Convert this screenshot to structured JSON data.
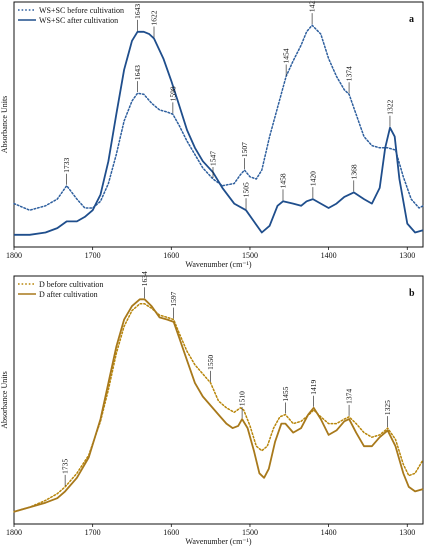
{
  "chart_data": [
    {
      "type": "line",
      "panel_label": "a",
      "xlabel": "Wavenumber (cm⁻¹)",
      "ylabel": "Absorbance Units",
      "xlim": [
        1800,
        1280
      ],
      "x_reversed": true,
      "x_ticks": [
        1800,
        1700,
        1600,
        1500,
        1400,
        1300
      ],
      "y_ticks_shown": false,
      "legend_placement": "top-left",
      "series": [
        {
          "name": "WS+SC before cultivation",
          "style": "dotted",
          "color": "#2e5f9e",
          "points": [
            [
              1800,
              0.15
            ],
            [
              1780,
              0.12
            ],
            [
              1760,
              0.14
            ],
            [
              1745,
              0.17
            ],
            [
              1733,
              0.23
            ],
            [
              1720,
              0.17
            ],
            [
              1710,
              0.13
            ],
            [
              1700,
              0.13
            ],
            [
              1690,
              0.16
            ],
            [
              1680,
              0.24
            ],
            [
              1670,
              0.37
            ],
            [
              1660,
              0.52
            ],
            [
              1650,
              0.61
            ],
            [
              1643,
              0.645
            ],
            [
              1635,
              0.64
            ],
            [
              1625,
              0.6
            ],
            [
              1615,
              0.57
            ],
            [
              1605,
              0.56
            ],
            [
              1598,
              0.55
            ],
            [
              1590,
              0.5
            ],
            [
              1580,
              0.43
            ],
            [
              1570,
              0.37
            ],
            [
              1560,
              0.31
            ],
            [
              1547,
              0.26
            ],
            [
              1535,
              0.23
            ],
            [
              1520,
              0.24
            ],
            [
              1512,
              0.28
            ],
            [
              1507,
              0.3
            ],
            [
              1500,
              0.27
            ],
            [
              1492,
              0.26
            ],
            [
              1485,
              0.3
            ],
            [
              1475,
              0.45
            ],
            [
              1465,
              0.58
            ],
            [
              1454,
              0.72
            ],
            [
              1445,
              0.79
            ],
            [
              1435,
              0.86
            ],
            [
              1428,
              0.92
            ],
            [
              1421,
              0.95
            ],
            [
              1410,
              0.91
            ],
            [
              1400,
              0.8
            ],
            [
              1390,
              0.72
            ],
            [
              1380,
              0.66
            ],
            [
              1374,
              0.64
            ],
            [
              1365,
              0.55
            ],
            [
              1355,
              0.45
            ],
            [
              1345,
              0.41
            ],
            [
              1335,
              0.4
            ],
            [
              1325,
              0.4
            ],
            [
              1315,
              0.39
            ],
            [
              1305,
              0.27
            ],
            [
              1295,
              0.17
            ],
            [
              1285,
              0.13
            ],
            [
              1280,
              0.14
            ]
          ]
        },
        {
          "name": "WS+SC after cultivation",
          "style": "solid",
          "color": "#1f4e8c",
          "points": [
            [
              1800,
              0.01
            ],
            [
              1780,
              0.01
            ],
            [
              1760,
              0.02
            ],
            [
              1745,
              0.04
            ],
            [
              1733,
              0.07
            ],
            [
              1720,
              0.07
            ],
            [
              1710,
              0.09
            ],
            [
              1700,
              0.12
            ],
            [
              1690,
              0.19
            ],
            [
              1680,
              0.34
            ],
            [
              1670,
              0.55
            ],
            [
              1660,
              0.75
            ],
            [
              1650,
              0.88
            ],
            [
              1643,
              0.92
            ],
            [
              1635,
              0.92
            ],
            [
              1628,
              0.91
            ],
            [
              1622,
              0.89
            ],
            [
              1610,
              0.8
            ],
            [
              1600,
              0.7
            ],
            [
              1590,
              0.59
            ],
            [
              1580,
              0.48
            ],
            [
              1570,
              0.4
            ],
            [
              1560,
              0.34
            ],
            [
              1547,
              0.29
            ],
            [
              1535,
              0.22
            ],
            [
              1520,
              0.15
            ],
            [
              1505,
              0.12
            ],
            [
              1495,
              0.07
            ],
            [
              1485,
              0.02
            ],
            [
              1475,
              0.05
            ],
            [
              1465,
              0.14
            ],
            [
              1458,
              0.16
            ],
            [
              1445,
              0.15
            ],
            [
              1435,
              0.14
            ],
            [
              1428,
              0.16
            ],
            [
              1420,
              0.17
            ],
            [
              1410,
              0.15
            ],
            [
              1400,
              0.13
            ],
            [
              1390,
              0.15
            ],
            [
              1380,
              0.18
            ],
            [
              1368,
              0.2
            ],
            [
              1355,
              0.17
            ],
            [
              1345,
              0.15
            ],
            [
              1335,
              0.22
            ],
            [
              1328,
              0.4
            ],
            [
              1322,
              0.49
            ],
            [
              1316,
              0.45
            ],
            [
              1310,
              0.26
            ],
            [
              1300,
              0.06
            ],
            [
              1290,
              0.02
            ],
            [
              1280,
              0.03
            ]
          ]
        }
      ],
      "peak_labels": [
        {
          "text": "1733",
          "x": 1733,
          "y": 0.23
        },
        {
          "text": "1643",
          "x": 1643,
          "y": 0.645
        },
        {
          "text": "1598",
          "x": 1598,
          "y": 0.55
        },
        {
          "text": "1547",
          "x": 1547,
          "y": 0.26
        },
        {
          "text": "1507",
          "x": 1507,
          "y": 0.3
        },
        {
          "text": "1454",
          "x": 1454,
          "y": 0.72
        },
        {
          "text": "1421",
          "x": 1421,
          "y": 0.95
        },
        {
          "text": "1374",
          "x": 1374,
          "y": 0.64
        },
        {
          "text": "1643",
          "x": 1643,
          "y": 0.92
        },
        {
          "text": "1622",
          "x": 1622,
          "y": 0.89
        },
        {
          "text": "1505",
          "x": 1505,
          "y": 0.12
        },
        {
          "text": "1458",
          "x": 1458,
          "y": 0.16
        },
        {
          "text": "1420",
          "x": 1420,
          "y": 0.17
        },
        {
          "text": "1368",
          "x": 1368,
          "y": 0.2
        },
        {
          "text": "1322",
          "x": 1322,
          "y": 0.49
        }
      ]
    },
    {
      "type": "line",
      "panel_label": "b",
      "xlabel": "Wavenumber (cm⁻¹)",
      "ylabel": "Absorbance Units",
      "xlim": [
        1800,
        1280
      ],
      "x_reversed": true,
      "x_ticks": [
        1800,
        1700,
        1600,
        1500,
        1400,
        1300
      ],
      "y_ticks_shown": false,
      "legend_placement": "top-left",
      "series": [
        {
          "name": "D before cultivation",
          "style": "dotted",
          "color": "#b8860b",
          "points": [
            [
              1800,
              0.01
            ],
            [
              1780,
              0.03
            ],
            [
              1760,
              0.06
            ],
            [
              1745,
              0.09
            ],
            [
              1735,
              0.12
            ],
            [
              1720,
              0.18
            ],
            [
              1705,
              0.26
            ],
            [
              1690,
              0.41
            ],
            [
              1680,
              0.55
            ],
            [
              1670,
              0.71
            ],
            [
              1660,
              0.83
            ],
            [
              1650,
              0.9
            ],
            [
              1640,
              0.93
            ],
            [
              1634,
              0.93
            ],
            [
              1625,
              0.91
            ],
            [
              1615,
              0.88
            ],
            [
              1605,
              0.87
            ],
            [
              1597,
              0.86
            ],
            [
              1590,
              0.8
            ],
            [
              1580,
              0.72
            ],
            [
              1570,
              0.66
            ],
            [
              1560,
              0.62
            ],
            [
              1550,
              0.58
            ],
            [
              1540,
              0.5
            ],
            [
              1530,
              0.47
            ],
            [
              1520,
              0.45
            ],
            [
              1512,
              0.47
            ],
            [
              1508,
              0.46
            ],
            [
              1500,
              0.39
            ],
            [
              1492,
              0.3
            ],
            [
              1485,
              0.28
            ],
            [
              1478,
              0.3
            ],
            [
              1470,
              0.38
            ],
            [
              1462,
              0.43
            ],
            [
              1455,
              0.44
            ],
            [
              1445,
              0.4
            ],
            [
              1435,
              0.41
            ],
            [
              1425,
              0.44
            ],
            [
              1419,
              0.46
            ],
            [
              1410,
              0.43
            ],
            [
              1400,
              0.4
            ],
            [
              1390,
              0.4
            ],
            [
              1380,
              0.42
            ],
            [
              1374,
              0.43
            ],
            [
              1365,
              0.4
            ],
            [
              1355,
              0.36
            ],
            [
              1345,
              0.34
            ],
            [
              1335,
              0.35
            ],
            [
              1328,
              0.37
            ],
            [
              1325,
              0.38
            ],
            [
              1315,
              0.33
            ],
            [
              1305,
              0.22
            ],
            [
              1298,
              0.17
            ],
            [
              1290,
              0.18
            ],
            [
              1280,
              0.24
            ]
          ]
        },
        {
          "name": "D after cultivation",
          "style": "solid",
          "color": "#a8791b",
          "points": [
            [
              1800,
              0.01
            ],
            [
              1780,
              0.03
            ],
            [
              1760,
              0.05
            ],
            [
              1745,
              0.07
            ],
            [
              1735,
              0.1
            ],
            [
              1720,
              0.16
            ],
            [
              1705,
              0.25
            ],
            [
              1690,
              0.42
            ],
            [
              1680,
              0.58
            ],
            [
              1670,
              0.74
            ],
            [
              1660,
              0.86
            ],
            [
              1650,
              0.92
            ],
            [
              1640,
              0.95
            ],
            [
              1634,
              0.95
            ],
            [
              1625,
              0.92
            ],
            [
              1615,
              0.87
            ],
            [
              1605,
              0.86
            ],
            [
              1597,
              0.85
            ],
            [
              1590,
              0.78
            ],
            [
              1580,
              0.68
            ],
            [
              1570,
              0.58
            ],
            [
              1560,
              0.52
            ],
            [
              1550,
              0.48
            ],
            [
              1540,
              0.44
            ],
            [
              1530,
              0.4
            ],
            [
              1522,
              0.38
            ],
            [
              1515,
              0.39
            ],
            [
              1510,
              0.42
            ],
            [
              1503,
              0.38
            ],
            [
              1495,
              0.28
            ],
            [
              1488,
              0.18
            ],
            [
              1482,
              0.16
            ],
            [
              1476,
              0.2
            ],
            [
              1468,
              0.32
            ],
            [
              1460,
              0.4
            ],
            [
              1455,
              0.4
            ],
            [
              1445,
              0.36
            ],
            [
              1435,
              0.38
            ],
            [
              1426,
              0.44
            ],
            [
              1419,
              0.47
            ],
            [
              1410,
              0.42
            ],
            [
              1400,
              0.35
            ],
            [
              1390,
              0.37
            ],
            [
              1380,
              0.41
            ],
            [
              1374,
              0.42
            ],
            [
              1365,
              0.36
            ],
            [
              1355,
              0.3
            ],
            [
              1345,
              0.3
            ],
            [
              1335,
              0.34
            ],
            [
              1328,
              0.36
            ],
            [
              1325,
              0.37
            ],
            [
              1315,
              0.3
            ],
            [
              1305,
              0.18
            ],
            [
              1298,
              0.12
            ],
            [
              1290,
              0.1
            ],
            [
              1280,
              0.11
            ]
          ]
        }
      ],
      "peak_labels": [
        {
          "text": "1735",
          "x": 1735,
          "y": 0.12
        },
        {
          "text": "1634",
          "x": 1634,
          "y": 0.95
        },
        {
          "text": "1597",
          "x": 1597,
          "y": 0.86
        },
        {
          "text": "1550",
          "x": 1550,
          "y": 0.58
        },
        {
          "text": "1510",
          "x": 1510,
          "y": 0.42
        },
        {
          "text": "1455",
          "x": 1455,
          "y": 0.44
        },
        {
          "text": "1419",
          "x": 1419,
          "y": 0.47
        },
        {
          "text": "1374",
          "x": 1374,
          "y": 0.43
        },
        {
          "text": "1325",
          "x": 1325,
          "y": 0.38
        }
      ]
    }
  ]
}
